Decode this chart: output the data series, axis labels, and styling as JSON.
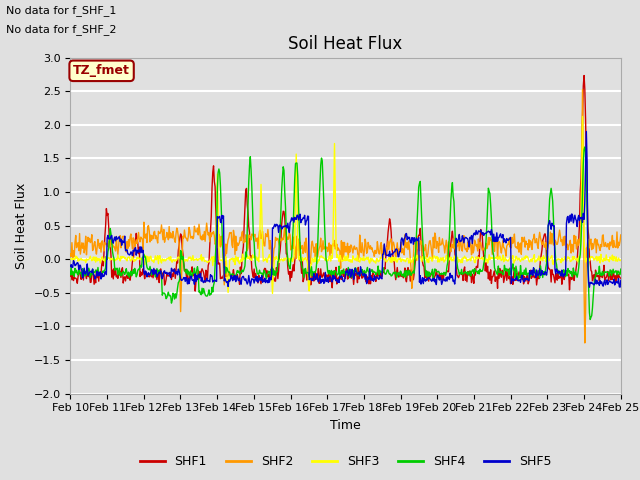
{
  "title": "Soil Heat Flux",
  "xlabel": "Time",
  "ylabel": "Soil Heat Flux",
  "ylim": [
    -2.0,
    3.0
  ],
  "yticks": [
    -2.0,
    -1.5,
    -1.0,
    -0.5,
    0.0,
    0.5,
    1.0,
    1.5,
    2.0,
    2.5,
    3.0
  ],
  "xtick_labels": [
    "Feb 10",
    "Feb 11",
    "Feb 12",
    "Feb 13",
    "Feb 14",
    "Feb 15",
    "Feb 16",
    "Feb 17",
    "Feb 18",
    "Feb 19",
    "Feb 20",
    "Feb 21",
    "Feb 22",
    "Feb 23",
    "Feb 24",
    "Feb 25"
  ],
  "colors": {
    "SHF1": "#cc0000",
    "SHF2": "#ff9900",
    "SHF3": "#ffff00",
    "SHF4": "#00cc00",
    "SHF5": "#0000cc"
  },
  "legend_labels": [
    "SHF1",
    "SHF2",
    "SHF3",
    "SHF4",
    "SHF5"
  ],
  "top_left_text": [
    "No data for f_SHF_1",
    "No data for f_SHF_2"
  ],
  "annotation_box_text": "TZ_fmet",
  "annotation_box_color": "#ffffcc",
  "annotation_box_border": "#990000",
  "plot_bg_color": "#e0e0e0",
  "grid_color": "#ffffff",
  "n_points": 720,
  "figsize": [
    6.4,
    4.8
  ],
  "dpi": 100
}
